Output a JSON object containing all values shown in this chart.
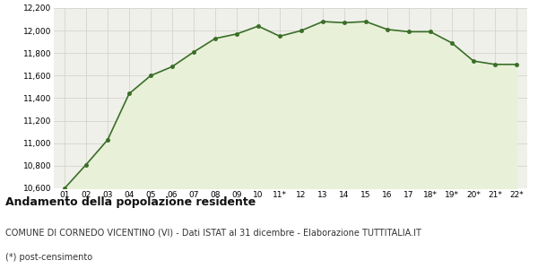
{
  "x_labels": [
    "01",
    "02",
    "03",
    "04",
    "05",
    "06",
    "07",
    "08",
    "09",
    "10",
    "11*",
    "12",
    "13",
    "14",
    "15",
    "16",
    "17",
    "18*",
    "19*",
    "20*",
    "21*",
    "22*"
  ],
  "y_values": [
    10600,
    10810,
    11030,
    11440,
    11600,
    11680,
    11810,
    11930,
    11970,
    12040,
    11950,
    12000,
    12080,
    12070,
    12080,
    12010,
    11990,
    11990,
    11890,
    11730,
    11700,
    11700
  ],
  "line_color": "#3a6e28",
  "fill_color": "#e8f0d8",
  "marker_color": "#3a6e28",
  "bg_color": "#f0f0ea",
  "grid_color": "#d0d0c8",
  "ylim": [
    10600,
    12200
  ],
  "yticks": [
    10600,
    10800,
    11000,
    11200,
    11400,
    11600,
    11800,
    12000,
    12200
  ],
  "title": "Andamento della popolazione residente",
  "subtitle": "COMUNE DI CORNEDO VICENTINO (VI) - Dati ISTAT al 31 dicembre - Elaborazione TUTTITALIA.IT",
  "footnote": "(*) post-censimento",
  "title_fontsize": 9,
  "subtitle_fontsize": 7,
  "footnote_fontsize": 7
}
